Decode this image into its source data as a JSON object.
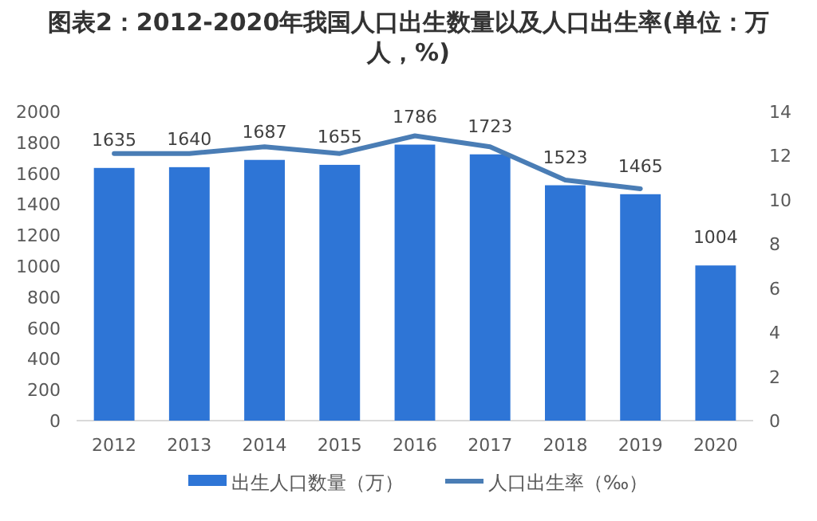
{
  "chart_data": {
    "type": "bar",
    "title": "图表2：2012-2020年我国人口出生数量以及人口出生率(单位：万人，%)",
    "categories": [
      "2012",
      "2013",
      "2014",
      "2015",
      "2016",
      "2017",
      "2018",
      "2019",
      "2020"
    ],
    "series": [
      {
        "name": "出生人口数量（万）",
        "color": "#2e75d6",
        "data_labels": true,
        "values": [
          1635,
          1640,
          1687,
          1655,
          1786,
          1723,
          1523,
          1465,
          1004
        ]
      },
      {
        "name": "人口出生率（‰）",
        "type": "line",
        "axis": "y2",
        "color": "#4a7db5",
        "values": [
          12.1,
          12.1,
          12.4,
          12.1,
          12.9,
          12.4,
          10.9,
          10.5,
          null
        ]
      }
    ],
    "ylim": [
      0,
      2000
    ],
    "yticks": [
      0,
      200,
      400,
      600,
      800,
      1000,
      1200,
      1400,
      1600,
      1800,
      2000
    ],
    "y2lim": [
      0,
      14
    ],
    "y2ticks": [
      0,
      2,
      4,
      6,
      8,
      10,
      12,
      14
    ],
    "legend": "bottom",
    "grid": false
  }
}
